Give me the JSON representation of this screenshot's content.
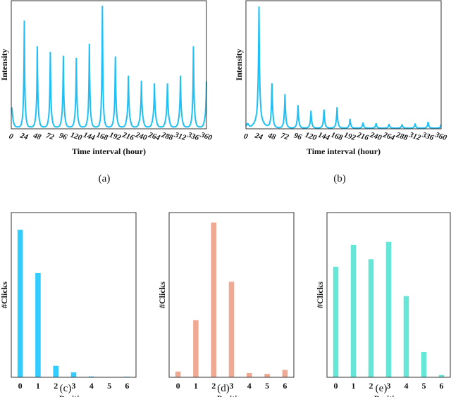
{
  "chart_data": [
    {
      "id": "a",
      "type": "line",
      "caption": "(a)",
      "xlabel": "Time interval (hour)",
      "ylabel": "Intensity",
      "xlim": [
        0,
        360
      ],
      "ylim": [
        0,
        1
      ],
      "xticks": [
        "0",
        "24",
        "48",
        "72",
        "96",
        "120",
        "144",
        "168",
        "192",
        "216",
        "240",
        "264",
        "288",
        "312",
        "336",
        "360"
      ],
      "color": "#1ec0f5",
      "peaks": {
        "x": [
          24,
          48,
          72,
          96,
          120,
          144,
          168,
          192,
          216,
          240,
          264,
          288,
          312,
          336,
          360
        ],
        "y": [
          0.84,
          0.64,
          0.595,
          0.566,
          0.55,
          0.66,
          0.955,
          0.56,
          0.41,
          0.37,
          0.35,
          0.35,
          0.41,
          0.64,
          0.365
        ]
      }
    },
    {
      "id": "b",
      "type": "line",
      "caption": "(b)",
      "xlabel": "Time interval (hour)",
      "ylabel": "Intensity",
      "xlim": [
        0,
        360
      ],
      "ylim": [
        0,
        1
      ],
      "xticks": [
        "0",
        "24",
        "48",
        "72",
        "96",
        "120",
        "144",
        "168",
        "192",
        "216",
        "240",
        "264",
        "288",
        "312",
        "336",
        "360"
      ],
      "color": "#1ec0f5",
      "peaks": {
        "x": [
          24,
          48,
          72,
          96,
          120,
          144,
          168,
          192,
          216,
          240,
          264,
          288,
          312,
          336,
          360
        ],
        "y": [
          0.95,
          0.347,
          0.266,
          0.18,
          0.137,
          0.146,
          0.164,
          0.073,
          0.044,
          0.038,
          0.033,
          0.03,
          0.036,
          0.05,
          0.03
        ]
      }
    },
    {
      "id": "c",
      "type": "bar",
      "caption": "(c)",
      "xlabel": "Position",
      "ylabel": "#Clicks",
      "categories": [
        "0",
        "1",
        "2",
        "3",
        "4",
        "5",
        "6"
      ],
      "values": [
        89.5,
        63.3,
        7.0,
        3.0,
        0.5,
        0.1,
        0.35
      ],
      "ylim": [
        0,
        100
      ],
      "color": "#33ccff"
    },
    {
      "id": "d",
      "type": "bar",
      "caption": "(d)",
      "xlabel": "Position",
      "ylabel": "#Clicks",
      "categories": [
        "0",
        "1",
        "2",
        "3",
        "4",
        "5",
        "6"
      ],
      "values": [
        3.5,
        34.6,
        93.9,
        58.0,
        2.6,
        2.1,
        4.5
      ],
      "ylim": [
        0,
        100
      ],
      "color": "#f0aa94"
    },
    {
      "id": "e",
      "type": "bar",
      "caption": "(e)",
      "xlabel": "Position",
      "ylabel": "#Clicks",
      "categories": [
        "0",
        "1",
        "2",
        "3",
        "4",
        "5",
        "6"
      ],
      "values": [
        67.1,
        80.4,
        71.7,
        82.2,
        49.3,
        15.4,
        1.4
      ],
      "ylim": [
        0,
        100
      ],
      "color": "#66e6d6"
    }
  ]
}
